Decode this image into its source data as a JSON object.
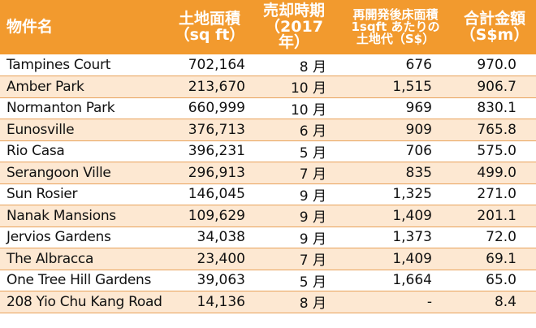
{
  "header": {
    "name": "物件名",
    "area_line1": "土地面積",
    "area_line2": "（sq ft）",
    "sale_line1": "売却時期",
    "sale_line2": "（2017年）",
    "unit_line1": "再開発後床面積",
    "unit_line2": "1sqft あたりの",
    "unit_line3": "土地代（S$）",
    "total_line1": "合計金額",
    "total_line2": "（S$m）"
  },
  "rows": [
    {
      "name": "Tampines Court",
      "area": "702,164",
      "month": "8 月",
      "unit_price": "676",
      "total": "970.0"
    },
    {
      "name": "Amber Park",
      "area": "213,670",
      "month": "10 月",
      "unit_price": "1,515",
      "total": "906.7"
    },
    {
      "name": "Normanton Park",
      "area": "660,999",
      "month": "10 月",
      "unit_price": "969",
      "total": "830.1"
    },
    {
      "name": "Eunosville",
      "area": "376,713",
      "month": "6 月",
      "unit_price": "909",
      "total": "765.8"
    },
    {
      "name": "Rio Casa",
      "area": "396,231",
      "month": "5 月",
      "unit_price": "706",
      "total": "575.0"
    },
    {
      "name": "Serangoon Ville",
      "area": "296,913",
      "month": "7 月",
      "unit_price": "835",
      "total": "499.0"
    },
    {
      "name": "Sun Rosier",
      "area": "146,045",
      "month": "9 月",
      "unit_price": "1,325",
      "total": "271.0"
    },
    {
      "name": "Nanak Mansions",
      "area": "109,629",
      "month": "9 月",
      "unit_price": "1,409",
      "total": "201.1"
    },
    {
      "name": "Jervios Gardens",
      "area": "34,038",
      "month": "9 月",
      "unit_price": "1,373",
      "total": "72.0"
    },
    {
      "name": "The Albracca",
      "area": "23,400",
      "month": "7 月",
      "unit_price": "1,409",
      "total": "69.1"
    },
    {
      "name": "One Tree Hill Gardens",
      "area": "39,063",
      "month": "5 月",
      "unit_price": "1,664",
      "total": "65.0"
    },
    {
      "name": "208 Yio Chu Kang Road",
      "area": "14,136",
      "month": "8 月",
      "unit_price": "-",
      "total": "8.4"
    }
  ],
  "colors": {
    "header_bg": "#f29a2e",
    "stripe": "#fde8d2",
    "rule": "#e8a25a"
  }
}
